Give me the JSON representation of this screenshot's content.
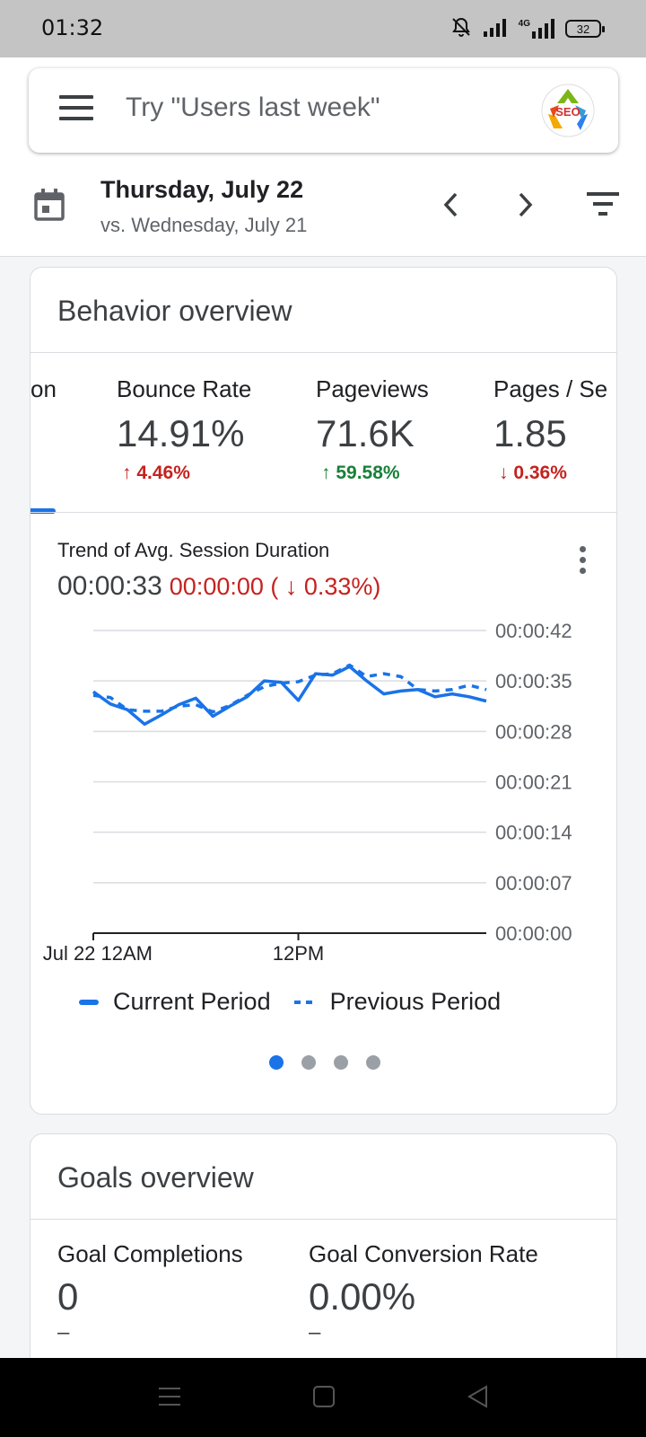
{
  "status_bar": {
    "time": "01:32",
    "battery": "32",
    "network": "4G",
    "icons": [
      "mute-bell-icon",
      "signal-icon",
      "4g-signal-icon",
      "battery-icon"
    ]
  },
  "header": {
    "search_placeholder": "Try \"Users last week\"",
    "avatar_text": "SEO",
    "date_main": "Thursday, July 22",
    "date_compare": "vs. Wednesday, July 21"
  },
  "behavior": {
    "title": "Behavior overview",
    "metrics": [
      {
        "label": "on",
        "value": "",
        "change": ""
      },
      {
        "label": "Bounce Rate",
        "value": "14.91%",
        "change": "↑ 4.46%",
        "trend": "up-bad"
      },
      {
        "label": "Pageviews",
        "value": "71.6K",
        "change": "↑ 59.58%",
        "trend": "up-good"
      },
      {
        "label": "Pages / Se",
        "value": "1.85",
        "change": "↓ 0.36%",
        "trend": "down-bad"
      }
    ],
    "trend_title": "Trend of Avg. Session Duration",
    "trend_value": "00:00:33",
    "trend_diff": "00:00:00 ( ↓ 0.33%)",
    "pager": {
      "count": 4,
      "active": 0
    }
  },
  "chart_data": {
    "type": "line",
    "title": "Trend of Avg. Session Duration",
    "y_tick_labels": [
      "00:00:42",
      "00:00:35",
      "00:00:28",
      "00:00:21",
      "00:00:14",
      "00:00:07",
      "00:00:00"
    ],
    "ylim": [
      0,
      42
    ],
    "x_tick_labels": [
      "Jul 22 12AM",
      "12PM"
    ],
    "x_hours": [
      0,
      1,
      2,
      3,
      4,
      5,
      6,
      7,
      8,
      9,
      10,
      11,
      12,
      13,
      14,
      15,
      16,
      17,
      18,
      19,
      20,
      21,
      22,
      23
    ],
    "series": [
      {
        "name": "Current Period",
        "style": "solid",
        "values": [
          33.5,
          31.8,
          31.0,
          29.0,
          30.3,
          31.7,
          32.6,
          30.1,
          31.5,
          32.8,
          35.0,
          34.8,
          32.3,
          36.0,
          35.8,
          37.0,
          35.0,
          33.2,
          33.6,
          33.8,
          32.8,
          33.2,
          32.8,
          32.2
        ]
      },
      {
        "name": "Previous Period",
        "style": "dashed",
        "values": [
          33.0,
          32.7,
          31.0,
          30.8,
          30.8,
          31.5,
          31.7,
          30.7,
          31.6,
          33.0,
          34.2,
          34.7,
          34.9,
          35.8,
          36.0,
          37.2,
          35.6,
          36.0,
          35.6,
          33.8,
          33.6,
          33.8,
          34.4,
          33.8
        ]
      }
    ],
    "colors": {
      "line": "#1a73e8",
      "grid": "#dadce0",
      "axis": "#202124"
    },
    "grid": true,
    "legend": "bottom"
  },
  "goals": {
    "title": "Goals overview",
    "metrics": [
      {
        "label": "Goal Completions",
        "value": "0",
        "change": "–"
      },
      {
        "label": "Goal Conversion Rate",
        "value": "0.00%",
        "change": "–"
      }
    ]
  }
}
